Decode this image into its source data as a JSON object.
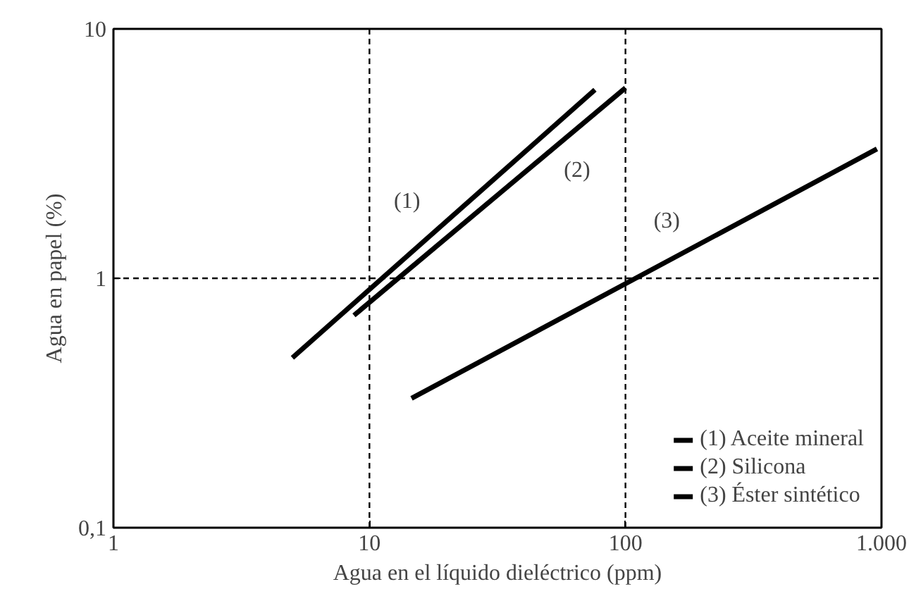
{
  "chart_data": {
    "type": "line",
    "xlabel": "Agua en el líquido dieléctrico (ppm)",
    "ylabel": "Agua en papel (%)",
    "log": "xy",
    "xlim": [
      1,
      1000
    ],
    "ylim": [
      0.1,
      10
    ],
    "xticks": [
      1,
      10,
      100,
      {
        "value": 1000,
        "label": "1.000"
      }
    ],
    "yticks": [
      {
        "value": 0.1,
        "label": "0,1"
      },
      1,
      10
    ],
    "grid": false,
    "legend": "bottom right",
    "marker": "none",
    "line_style": "solid",
    "series": [
      {
        "name": "(1) Aceite mineral",
        "color": "#000000",
        "x": [
          5.0,
          76
        ],
        "values": [
          0.48,
          5.7
        ]
      },
      {
        "name": "(2) Silicona",
        "color": "#000000",
        "x": [
          8.7,
          100
        ],
        "values": [
          0.71,
          5.8
        ]
      },
      {
        "name": "(3) Éster sintético",
        "color": "#000000",
        "x": [
          14.6,
          960
        ],
        "values": [
          0.33,
          3.3
        ]
      }
    ],
    "ref_lines": [
      {
        "axis": "x",
        "value": 10,
        "label": null,
        "line_style": "dashed"
      },
      {
        "axis": "x",
        "value": 100,
        "label": null,
        "line_style": "dashed"
      },
      {
        "axis": "y",
        "value": 1,
        "label": null,
        "line_style": "dashed"
      }
    ],
    "annotations": [
      "(1)",
      "(2)",
      "(3)"
    ]
  }
}
